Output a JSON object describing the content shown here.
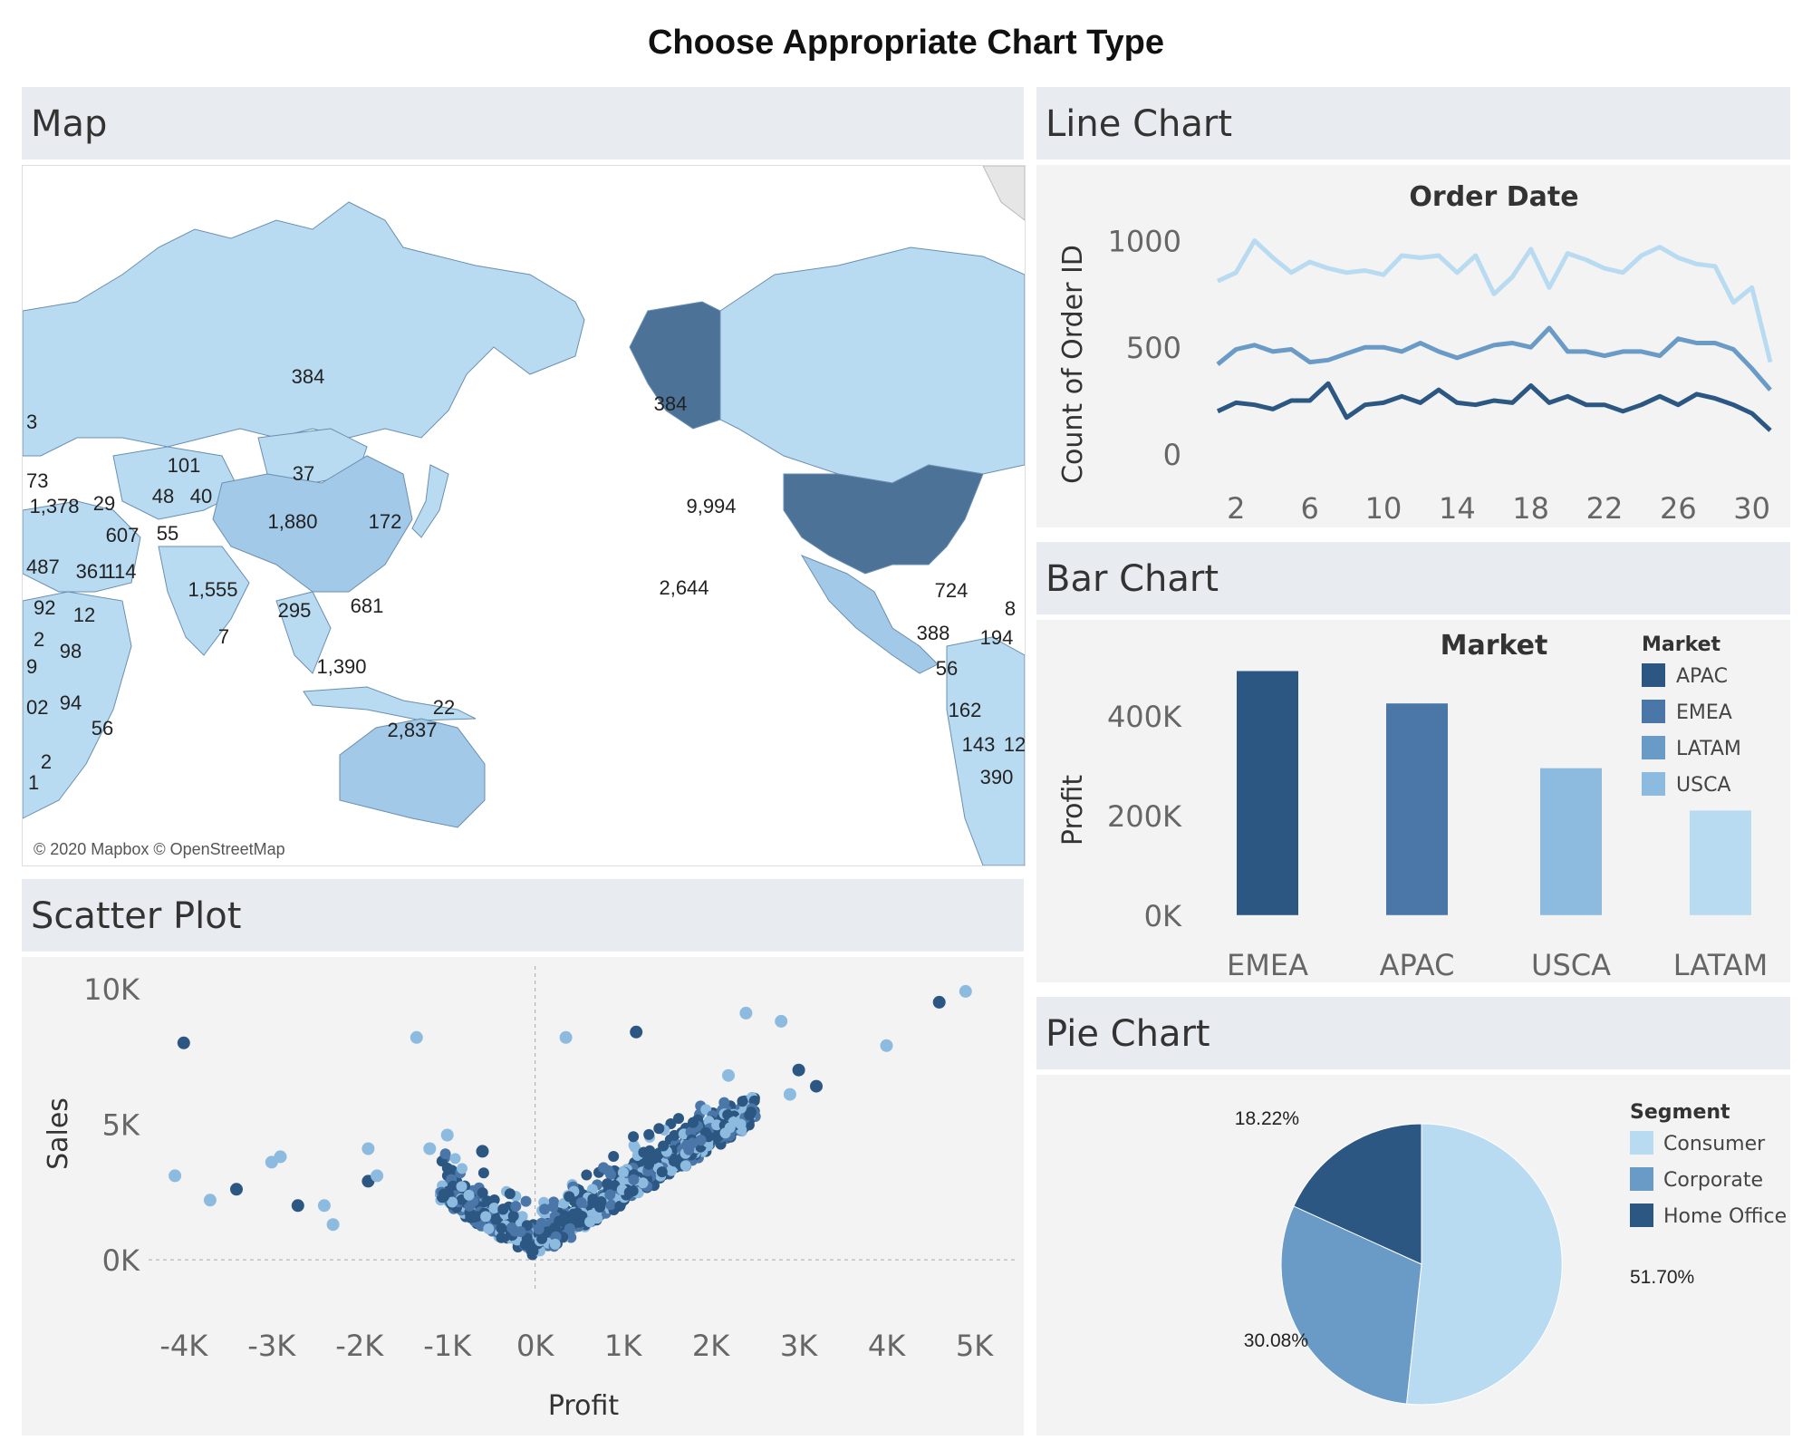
{
  "page_title": "Choose Appropriate Chart Type",
  "panels": {
    "map": "Map",
    "line": "Line Chart",
    "bar": "Bar Chart",
    "scatter": "Scatter Plot",
    "pie": "Pie Chart"
  },
  "map": {
    "attribution": "© 2020 Mapbox © OpenStreetMap",
    "labels": [
      {
        "text": "384"
      },
      {
        "text": "384"
      },
      {
        "text": "9,994"
      },
      {
        "text": "2,644"
      },
      {
        "text": "1,880"
      },
      {
        "text": "1,555"
      },
      {
        "text": "1,390"
      },
      {
        "text": "2,837"
      },
      {
        "text": "101"
      },
      {
        "text": "37"
      },
      {
        "text": "48"
      },
      {
        "text": "40"
      },
      {
        "text": "172"
      },
      {
        "text": "681"
      },
      {
        "text": "295"
      },
      {
        "text": "7"
      },
      {
        "text": "22"
      },
      {
        "text": "1,378"
      },
      {
        "text": "29"
      },
      {
        "text": "607"
      },
      {
        "text": "55"
      },
      {
        "text": "361"
      },
      {
        "text": "114"
      },
      {
        "text": "12"
      },
      {
        "text": "98"
      },
      {
        "text": "94"
      },
      {
        "text": "56"
      },
      {
        "text": "92"
      },
      {
        "text": "2"
      },
      {
        "text": "2"
      },
      {
        "text": "1"
      },
      {
        "text": "724"
      },
      {
        "text": "8"
      },
      {
        "text": "388"
      },
      {
        "text": "194"
      },
      {
        "text": "56"
      },
      {
        "text": "162"
      },
      {
        "text": "143"
      },
      {
        "text": "12"
      },
      {
        "text": "390"
      },
      {
        "text": "3"
      },
      {
        "text": "73"
      },
      {
        "text": "487"
      },
      {
        "text": "9"
      },
      {
        "text": "02"
      }
    ]
  },
  "colors": {
    "dark": "#2b5782",
    "mid_dark": "#4a76a8",
    "mid": "#6a9bc7",
    "light": "#8dbbe0",
    "lightest": "#b9dbf1",
    "panel_bg": "#f3f3f3",
    "head_bg": "#e8ecf0"
  },
  "chart_data": [
    {
      "id": "line",
      "type": "line",
      "title": "Order Date",
      "ylabel": "Count of Order ID",
      "xlabel": "",
      "x": [
        1,
        2,
        3,
        4,
        5,
        6,
        7,
        8,
        9,
        10,
        11,
        12,
        13,
        14,
        15,
        16,
        17,
        18,
        19,
        20,
        21,
        22,
        23,
        24,
        25,
        26,
        27,
        28,
        29,
        30,
        31
      ],
      "xticks": [
        "2",
        "6",
        "10",
        "14",
        "18",
        "22",
        "26",
        "30"
      ],
      "yticks": [
        "0",
        "500",
        "1000"
      ],
      "ylim": [
        -90,
        1100
      ],
      "series": [
        {
          "name": "light",
          "values": [
            810,
            850,
            1000,
            920,
            850,
            900,
            870,
            850,
            860,
            840,
            930,
            920,
            930,
            850,
            930,
            750,
            830,
            960,
            780,
            940,
            910,
            870,
            850,
            930,
            970,
            920,
            890,
            880,
            710,
            780,
            430
          ]
        },
        {
          "name": "mid",
          "values": [
            420,
            490,
            510,
            480,
            490,
            430,
            440,
            470,
            500,
            500,
            480,
            520,
            480,
            450,
            480,
            510,
            520,
            500,
            590,
            480,
            480,
            460,
            480,
            480,
            460,
            540,
            520,
            520,
            490,
            400,
            300
          ]
        },
        {
          "name": "dark",
          "values": [
            200,
            240,
            230,
            210,
            250,
            250,
            330,
            170,
            230,
            240,
            270,
            240,
            300,
            240,
            230,
            250,
            240,
            320,
            240,
            270,
            230,
            230,
            200,
            230,
            270,
            230,
            280,
            260,
            230,
            190,
            110
          ]
        }
      ]
    },
    {
      "id": "bar",
      "type": "bar",
      "title": "Market",
      "ylabel": "Profit",
      "xlabel": "",
      "categories": [
        "EMEA",
        "APAC",
        "USCA",
        "LATAM"
      ],
      "values": [
        490000,
        425000,
        295000,
        210000
      ],
      "ylim": [
        -35000,
        520000
      ],
      "yticks": [
        "0K",
        "200K",
        "400K"
      ],
      "legend_title": "Market",
      "legend": [
        "APAC",
        "EMEA",
        "LATAM",
        "USCA"
      ]
    },
    {
      "id": "scatter",
      "type": "scatter",
      "title": "",
      "xlabel": "Profit",
      "ylabel": "Sales",
      "xlim": [
        -4400,
        5500
      ],
      "ylim": [
        -1200,
        10500
      ],
      "xticks": [
        "-4K",
        "-3K",
        "-2K",
        "-1K",
        "0K",
        "1K",
        "2K",
        "3K",
        "4K",
        "5K"
      ],
      "yticks": [
        "0K",
        "5K",
        "10K"
      ],
      "outliers": [
        [
          -4000,
          8000
        ],
        [
          -1350,
          8200
        ],
        [
          350,
          8200
        ],
        [
          1150,
          8400
        ],
        [
          2400,
          9100
        ],
        [
          2800,
          8800
        ],
        [
          4600,
          9500
        ],
        [
          4900,
          9900
        ],
        [
          4000,
          7900
        ],
        [
          3000,
          7000
        ],
        [
          2200,
          6800
        ],
        [
          2900,
          6100
        ],
        [
          3200,
          6400
        ],
        [
          -4100,
          3100
        ],
        [
          -3700,
          2200
        ],
        [
          -3400,
          2600
        ],
        [
          -3000,
          3600
        ],
        [
          -2900,
          3800
        ],
        [
          -2700,
          2000
        ],
        [
          -2400,
          2000
        ],
        [
          -2300,
          1300
        ],
        [
          -1900,
          2900
        ],
        [
          -1800,
          3100
        ],
        [
          -1000,
          4600
        ],
        [
          -600,
          4000
        ],
        [
          -1900,
          4100
        ],
        [
          -1200,
          4100
        ]
      ]
    },
    {
      "id": "pie",
      "type": "pie",
      "title": "",
      "legend_title": "Segment",
      "categories": [
        "Consumer",
        "Corporate",
        "Home Office"
      ],
      "values": [
        51.7,
        30.08,
        18.22
      ],
      "labels": [
        "51.70%",
        "30.08%",
        "18.22%"
      ]
    }
  ]
}
